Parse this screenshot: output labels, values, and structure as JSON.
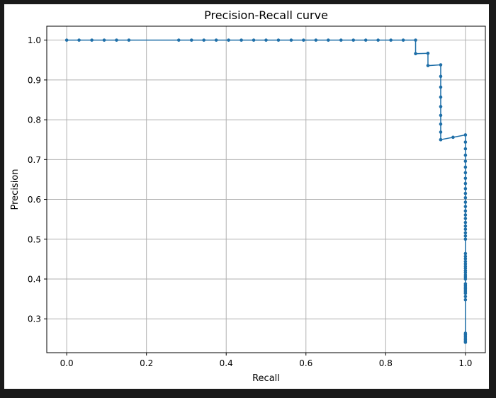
{
  "chart_data": {
    "type": "line",
    "title": "Precision-Recall curve",
    "xlabel": "Recall",
    "ylabel": "Precision",
    "xlim": [
      -0.05,
      1.05
    ],
    "ylim": [
      0.215,
      1.035
    ],
    "xticks": [
      0.0,
      0.2,
      0.4,
      0.6,
      0.8,
      1.0
    ],
    "xtick_labels": [
      "0.0",
      "0.2",
      "0.4",
      "0.6",
      "0.8",
      "1.0"
    ],
    "yticks": [
      0.3,
      0.4,
      0.5,
      0.6,
      0.7,
      0.8,
      0.9,
      1.0
    ],
    "ytick_labels": [
      "0.3",
      "0.4",
      "0.5",
      "0.6",
      "0.7",
      "0.8",
      "0.9",
      "1.0"
    ],
    "grid": true,
    "marker": "circle",
    "colors": {
      "series": "#1f6fa8",
      "grid": "#b0b0b0",
      "background": "#ffffff",
      "frame": "#1a1a1a"
    },
    "series": [
      {
        "x": [
          0.0,
          0.031,
          0.063,
          0.094,
          0.125,
          0.156,
          0.281,
          0.313,
          0.344,
          0.375,
          0.406,
          0.438,
          0.469,
          0.5,
          0.531,
          0.563,
          0.594,
          0.625,
          0.656,
          0.688,
          0.719,
          0.75,
          0.781,
          0.813,
          0.844,
          0.875,
          0.875,
          0.906,
          0.906,
          0.938,
          0.938,
          0.938,
          0.938,
          0.938,
          0.938,
          0.938,
          0.938,
          0.938,
          0.938,
          0.969,
          1.0,
          1.0,
          1.0,
          1.0,
          1.0,
          1.0,
          1.0,
          1.0,
          1.0,
          1.0,
          1.0,
          1.0,
          1.0,
          1.0,
          1.0,
          1.0,
          1.0,
          1.0,
          1.0,
          1.0,
          1.0,
          1.0,
          1.0,
          1.0,
          1.0,
          1.0,
          1.0,
          1.0,
          1.0,
          1.0,
          1.0,
          1.0,
          1.0,
          1.0,
          1.0,
          1.0,
          1.0,
          1.0,
          1.0,
          1.0,
          1.0,
          1.0,
          1.0,
          1.0,
          1.0,
          1.0,
          1.0,
          1.0,
          1.0,
          1.0,
          1.0
        ],
        "y": [
          1.0,
          1.0,
          1.0,
          1.0,
          1.0,
          1.0,
          1.0,
          1.0,
          1.0,
          1.0,
          1.0,
          1.0,
          1.0,
          1.0,
          1.0,
          1.0,
          1.0,
          1.0,
          1.0,
          1.0,
          1.0,
          1.0,
          1.0,
          1.0,
          1.0,
          1.0,
          0.966,
          0.967,
          0.936,
          0.938,
          0.909,
          0.882,
          0.857,
          0.833,
          0.811,
          0.789,
          0.769,
          0.75,
          0.75,
          0.756,
          0.762,
          0.744,
          0.727,
          0.711,
          0.696,
          0.681,
          0.667,
          0.653,
          0.64,
          0.627,
          0.615,
          0.604,
          0.593,
          0.582,
          0.571,
          0.561,
          0.552,
          0.542,
          0.533,
          0.525,
          0.516,
          0.508,
          0.5,
          0.464,
          0.457,
          0.451,
          0.444,
          0.438,
          0.432,
          0.427,
          0.421,
          0.416,
          0.41,
          0.405,
          0.4,
          0.388,
          0.384,
          0.38,
          0.376,
          0.372,
          0.368,
          0.364,
          0.356,
          0.348,
          0.264,
          0.26,
          0.256,
          0.252,
          0.248,
          0.244,
          0.241
        ]
      }
    ]
  }
}
